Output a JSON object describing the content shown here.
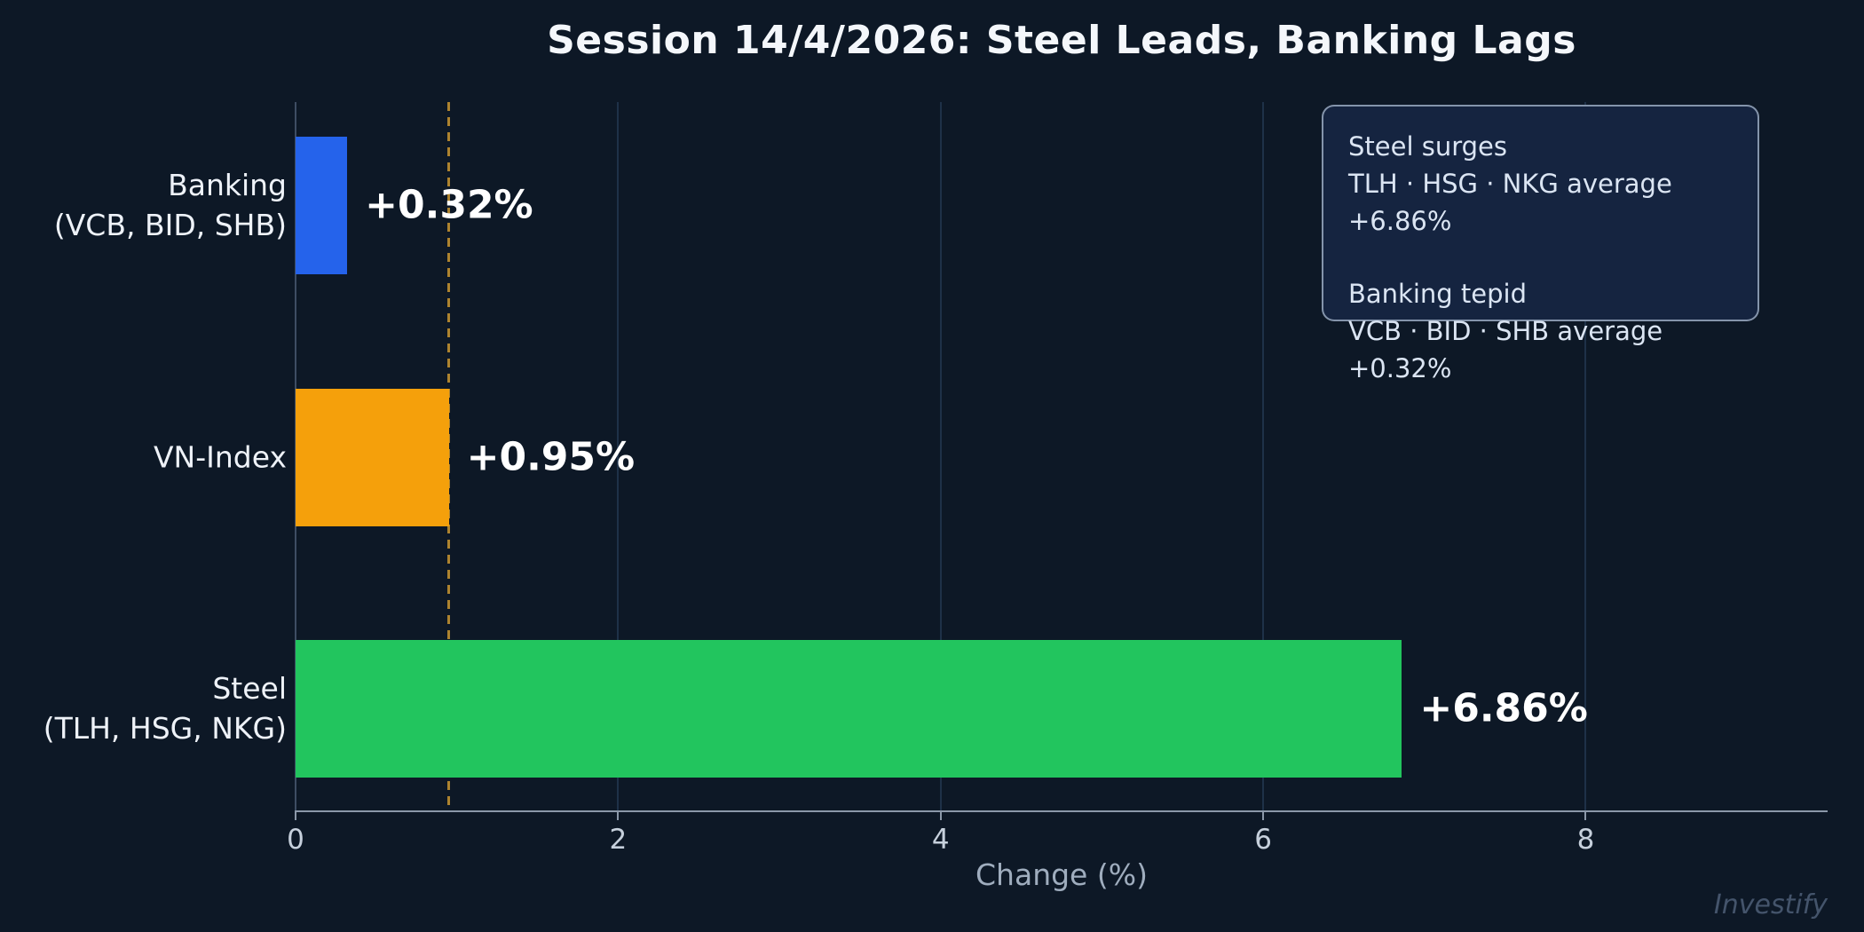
{
  "title": "Session 14/4/2026: Steel Leads, Banking Lags",
  "watermark": "Investify",
  "colors": {
    "background": "#0d1826",
    "bar_banking": "#2563eb",
    "bar_vnindex": "#f5a00b",
    "bar_steel": "#22c55e",
    "gridline": "#1e3148",
    "reference_line": "#ad832f",
    "axis_spine": "#8b98a9",
    "tick_label": "#c6d0dc",
    "annotation_bg": "#152440",
    "annotation_text": "#dbe5f3",
    "value_label": "#ffffff"
  },
  "chart_data": {
    "type": "bar",
    "orientation": "horizontal",
    "title": "Session 14/4/2026: Steel Leads, Banking Lags",
    "xlabel": "Change (%)",
    "ylabel": "",
    "xlim": [
      0,
      9.5
    ],
    "xticks": [
      0,
      2,
      4,
      6,
      8
    ],
    "grid": "vertical gridlines at non-zero ticks",
    "reference_line_x": 0.95,
    "reference_line_style": "gold dashed vertical",
    "categories": [
      "Banking (VCB, BID, SHB)",
      "VN-Index",
      "Steel (TLH, HSG, NKG)"
    ],
    "values": [
      0.32,
      0.95,
      6.86
    ],
    "rows": [
      {
        "label_line1": "Banking",
        "label_line2": "(VCB, BID, SHB)",
        "value": 0.32,
        "value_label": "+0.32%",
        "color": "#2563eb"
      },
      {
        "label_line1": "VN-Index",
        "label_line2": "",
        "value": 0.95,
        "value_label": "+0.95%",
        "color": "#f5a00b"
      },
      {
        "label_line1": "Steel",
        "label_line2": "(TLH, HSG, NKG)",
        "value": 6.86,
        "value_label": "+6.86%",
        "color": "#22c55e"
      }
    ]
  },
  "annotation": {
    "steel_heading": "Steel surges",
    "steel_detail": "TLH · HSG · NKG average +6.86%",
    "banking_heading": "Banking tepid",
    "banking_detail": "VCB · BID · SHB average +0.32%"
  },
  "x_axis": {
    "label": "Change (%)",
    "tick_labels": [
      "0",
      "2",
      "4",
      "6",
      "8"
    ]
  }
}
